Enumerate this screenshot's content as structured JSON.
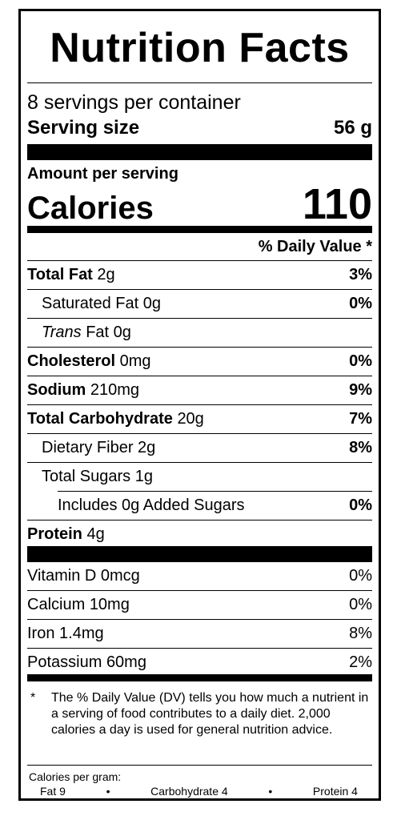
{
  "title": "Nutrition Facts",
  "servings": "8 servings per container",
  "serving_size": {
    "label": "Serving size",
    "value": "56 g"
  },
  "amount_per_serving": "Amount per serving",
  "calories": {
    "label": "Calories",
    "value": "110"
  },
  "daily_value_header": "% Daily Value *",
  "nutrients": [
    {
      "name": "Total Fat",
      "amount": "2g",
      "dv": "3%"
    },
    {
      "name": "Saturated Fat",
      "amount": "0g",
      "dv": "0%"
    },
    {
      "name": "Trans",
      "name_suffix": "Fat",
      "amount": "0g",
      "dv": ""
    },
    {
      "name": "Cholesterol",
      "amount": "0mg",
      "dv": "0%"
    },
    {
      "name": "Sodium",
      "amount": "210mg",
      "dv": "9%"
    },
    {
      "name": "Total Carbohydrate",
      "amount": "20g",
      "dv": "7%"
    },
    {
      "name": "Dietary Fiber",
      "amount": "2g",
      "dv": "8%"
    },
    {
      "name": "Total Sugars",
      "amount": "1g",
      "dv": ""
    },
    {
      "name": "Includes 0g Added Sugars",
      "amount": "",
      "dv": "0%"
    },
    {
      "name": "Protein",
      "amount": "4g",
      "dv": ""
    }
  ],
  "vitamins": [
    {
      "name": "Vitamin D",
      "amount": "0mcg",
      "dv": "0%"
    },
    {
      "name": "Calcium",
      "amount": "10mg",
      "dv": "0%"
    },
    {
      "name": "Iron",
      "amount": "1.4mg",
      "dv": "8%"
    },
    {
      "name": "Potassium",
      "amount": "60mg",
      "dv": "2%"
    }
  ],
  "footnote": {
    "star": "*",
    "text": "The % Daily Value (DV) tells you how much a nutrient in a serving of food contributes to a daily diet. 2,000 calories a day is used for general nutrition advice."
  },
  "calories_per_gram": {
    "label": "Calories per gram:",
    "fat": "Fat 9",
    "sep": "•",
    "carbohydrate": "Carbohydrate 4",
    "protein": "Protein 4"
  }
}
